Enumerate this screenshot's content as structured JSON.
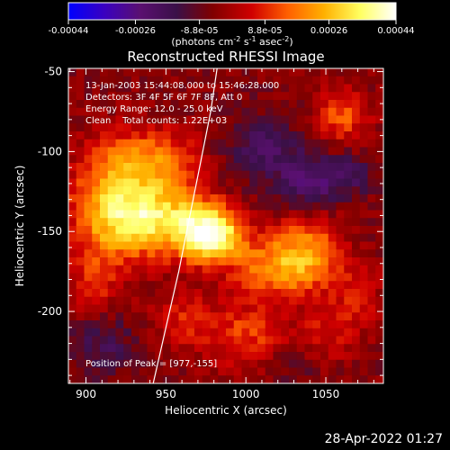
{
  "footer": {
    "timestamp": "28-Apr-2022 01:27"
  },
  "colorbar": {
    "ticks": [
      "-0.00044",
      "-0.00026",
      "-8.8e-05",
      "8.8e-05",
      "0.00026",
      "0.00044"
    ],
    "tick_values": [
      -0.00044,
      -0.00026,
      -8.8e-05,
      8.8e-05,
      0.00026,
      0.00044
    ],
    "range": [
      -0.00044,
      0.00044
    ],
    "label_prefix": "(photons cm",
    "label_exp1": "-2",
    "label_mid": " s",
    "label_exp2": "-1",
    "label_mid2": " asec",
    "label_exp3": "-2",
    "label_suffix": ")",
    "colors": [
      "#0000ff",
      "#3a00c0",
      "#5a1070",
      "#3a1048",
      "#800000",
      "#d00000",
      "#ff6000",
      "#ffb000",
      "#ffff60",
      "#ffffff"
    ]
  },
  "chart_data": {
    "type": "heatmap",
    "title": "Reconstructed RHESSI Image",
    "xlabel": "Heliocentric X (arcsec)",
    "ylabel": "Heliocentric Y (arcsec)",
    "xlim": [
      889,
      1086
    ],
    "ylim": [
      -245,
      -48
    ],
    "xticks": [
      900,
      950,
      1000,
      1050
    ],
    "yticks": [
      -50,
      -100,
      -150,
      -200
    ],
    "info_lines": [
      "13-Jan-2003 15:44:08.000 to 15:46:28.000",
      "Detectors: 3F 4F 5F 6F 7F 8F, Att 0",
      "Energy Range: 12.0 - 25.0 keV",
      "Clean    Total counts: 1.22E+03"
    ],
    "peak_text": "Position of Peak = [977,-155]",
    "peak": [
      977,
      -155
    ],
    "limb_curve": [
      [
        942,
        -245
      ],
      [
        950,
        -210
      ],
      [
        958,
        -175
      ],
      [
        965,
        -140
      ],
      [
        972,
        -105
      ],
      [
        978,
        -75
      ],
      [
        982,
        -48
      ]
    ],
    "grid_resolution": [
      40,
      40
    ],
    "sources": [
      {
        "x": 978,
        "y": -152,
        "amp": 0.00044,
        "sx": 14,
        "sy": 12
      },
      {
        "x": 945,
        "y": -142,
        "amp": 0.00032,
        "sx": 22,
        "sy": 16
      },
      {
        "x": 915,
        "y": -135,
        "amp": 0.00026,
        "sx": 18,
        "sy": 22
      },
      {
        "x": 940,
        "y": -105,
        "amp": 0.00022,
        "sx": 22,
        "sy": 14
      },
      {
        "x": 1020,
        "y": -172,
        "amp": 0.00024,
        "sx": 20,
        "sy": 14
      },
      {
        "x": 1040,
        "y": -160,
        "amp": 0.00018,
        "sx": 14,
        "sy": 16
      },
      {
        "x": 1060,
        "y": -78,
        "amp": 0.00018,
        "sx": 12,
        "sy": 12
      },
      {
        "x": 1000,
        "y": -215,
        "amp": 0.00016,
        "sx": 18,
        "sy": 14
      },
      {
        "x": 960,
        "y": -205,
        "amp": 0.00012,
        "sx": 14,
        "sy": 12
      },
      {
        "x": 905,
        "y": -182,
        "amp": 0.00012,
        "sx": 12,
        "sy": 16
      },
      {
        "x": 1050,
        "y": -215,
        "amp": 0.0001,
        "sx": 12,
        "sy": 14
      },
      {
        "x": 1070,
        "y": -190,
        "amp": 0.00012,
        "sx": 10,
        "sy": 14
      },
      {
        "x": 1010,
        "y": -100,
        "amp": -0.00014,
        "sx": 18,
        "sy": 16
      },
      {
        "x": 1040,
        "y": -120,
        "amp": -0.00018,
        "sx": 12,
        "sy": 12
      },
      {
        "x": 1065,
        "y": -115,
        "amp": -0.00012,
        "sx": 10,
        "sy": 10
      },
      {
        "x": 910,
        "y": -220,
        "amp": -0.00012,
        "sx": 14,
        "sy": 14
      },
      {
        "x": 1030,
        "y": -235,
        "amp": -6e-05,
        "sx": 14,
        "sy": 10
      }
    ]
  }
}
